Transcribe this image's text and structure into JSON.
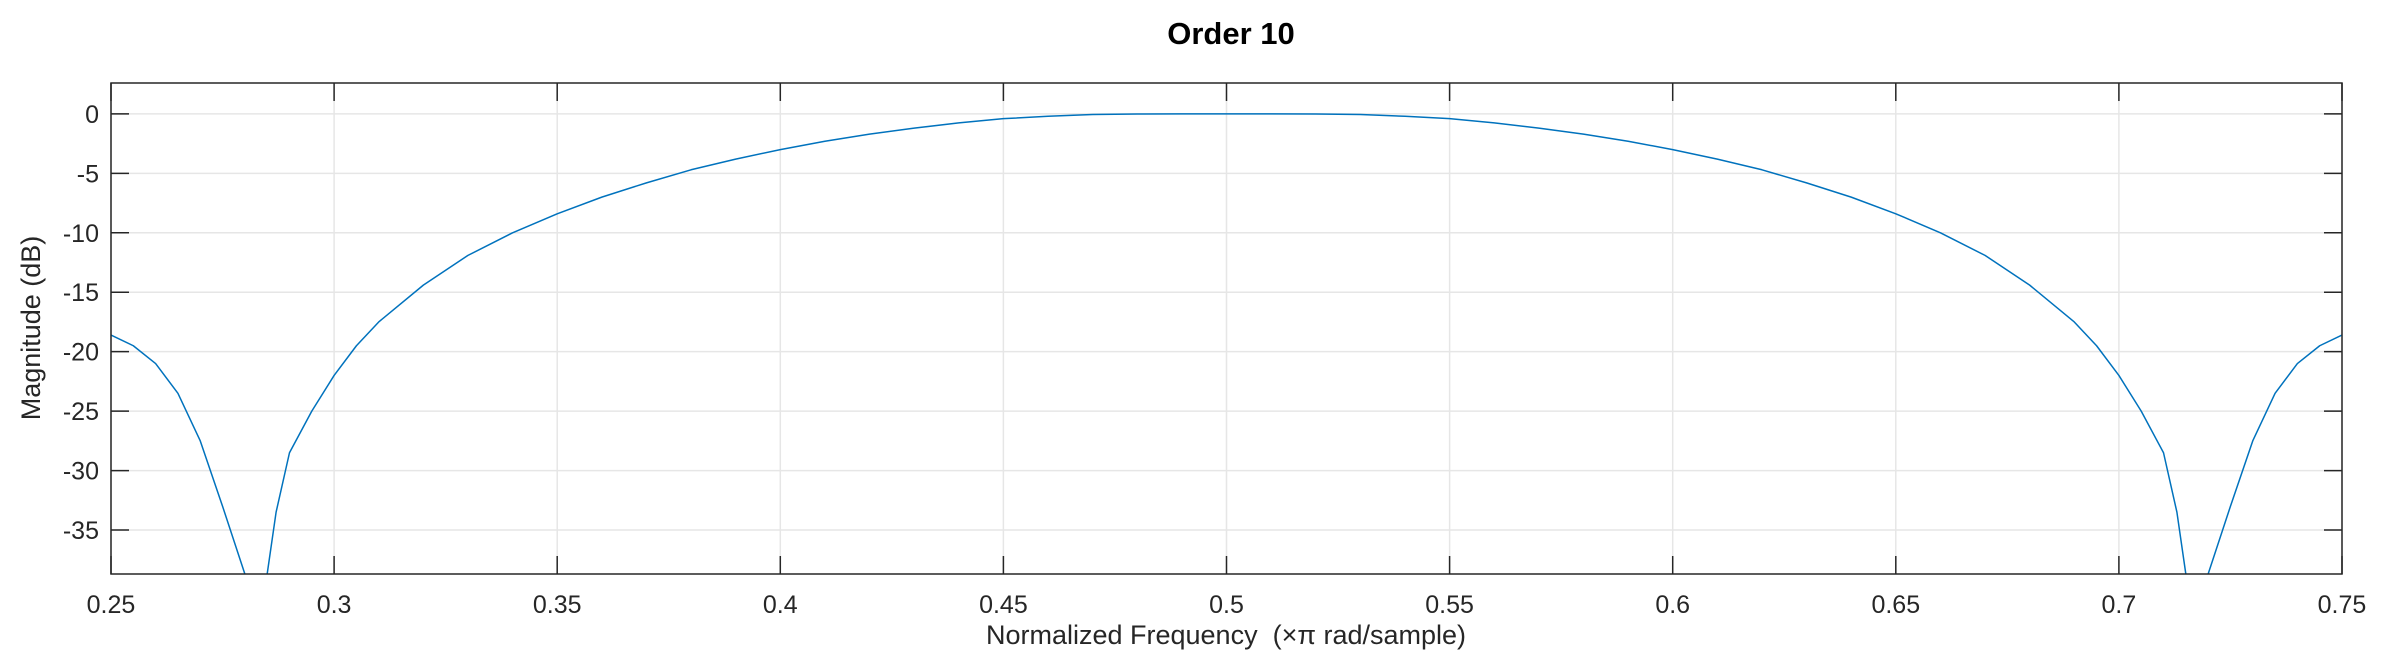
{
  "chart_data": {
    "type": "line",
    "title": "Order 10",
    "xlabel": "Normalized Frequency  (×π rad/sample)",
    "ylabel": "Magnitude (dB)",
    "xlim": [
      0.25,
      0.75
    ],
    "ylim": [
      -38.7,
      2.6
    ],
    "xticks": [
      0.25,
      0.3,
      0.35,
      0.4,
      0.45,
      0.5,
      0.55,
      0.6,
      0.65,
      0.7,
      0.75
    ],
    "xtick_labels": [
      "0.25",
      "0.3",
      "0.35",
      "0.4",
      "0.45",
      "0.5",
      "0.55",
      "0.6",
      "0.65",
      "0.7",
      "0.75"
    ],
    "yticks": [
      0,
      -5,
      -10,
      -15,
      -20,
      -25,
      -30,
      -35
    ],
    "ytick_labels": [
      "0",
      "-5",
      "-10",
      "-15",
      "-20",
      "-25",
      "-30",
      "-35"
    ],
    "grid": true,
    "box": true,
    "series": [
      {
        "color": "#0072BD",
        "x": [
          0.25,
          0.255,
          0.26,
          0.265,
          0.27,
          0.275,
          0.28,
          0.282,
          0.285,
          0.287,
          0.29,
          0.295,
          0.3,
          0.305,
          0.31,
          0.32,
          0.33,
          0.34,
          0.35,
          0.36,
          0.37,
          0.38,
          0.39,
          0.4,
          0.41,
          0.42,
          0.43,
          0.44,
          0.45,
          0.46,
          0.47,
          0.48,
          0.49,
          0.5,
          0.51,
          0.52,
          0.53,
          0.54,
          0.55,
          0.56,
          0.57,
          0.58,
          0.59,
          0.6,
          0.61,
          0.62,
          0.63,
          0.64,
          0.65,
          0.66,
          0.67,
          0.68,
          0.69,
          0.695,
          0.7,
          0.705,
          0.71,
          0.713,
          0.715,
          0.718,
          0.72,
          0.725,
          0.73,
          0.735,
          0.74,
          0.745,
          0.75
        ],
        "y": [
          -18.6,
          -19.5,
          -21.0,
          -23.5,
          -27.5,
          -33.0,
          -38.7,
          null,
          -38.7,
          -33.5,
          -28.5,
          -25.0,
          -22.0,
          -19.5,
          -17.5,
          -14.4,
          -11.9,
          -10.0,
          -8.4,
          -7.0,
          -5.8,
          -4.7,
          -3.8,
          -3.0,
          -2.3,
          -1.7,
          -1.2,
          -0.75,
          -0.4,
          -0.2,
          -0.05,
          -0.01,
          0.0,
          0.0,
          0.0,
          -0.01,
          -0.05,
          -0.2,
          -0.4,
          -0.75,
          -1.2,
          -1.7,
          -2.3,
          -3.0,
          -3.8,
          -4.7,
          -5.8,
          -7.0,
          -8.4,
          -10.0,
          -11.9,
          -14.4,
          -17.5,
          -19.5,
          -22.0,
          -25.0,
          -28.5,
          -33.5,
          -38.7,
          null,
          -38.7,
          -33.0,
          -27.5,
          -23.5,
          -21.0,
          -19.5,
          -18.6
        ]
      }
    ]
  }
}
